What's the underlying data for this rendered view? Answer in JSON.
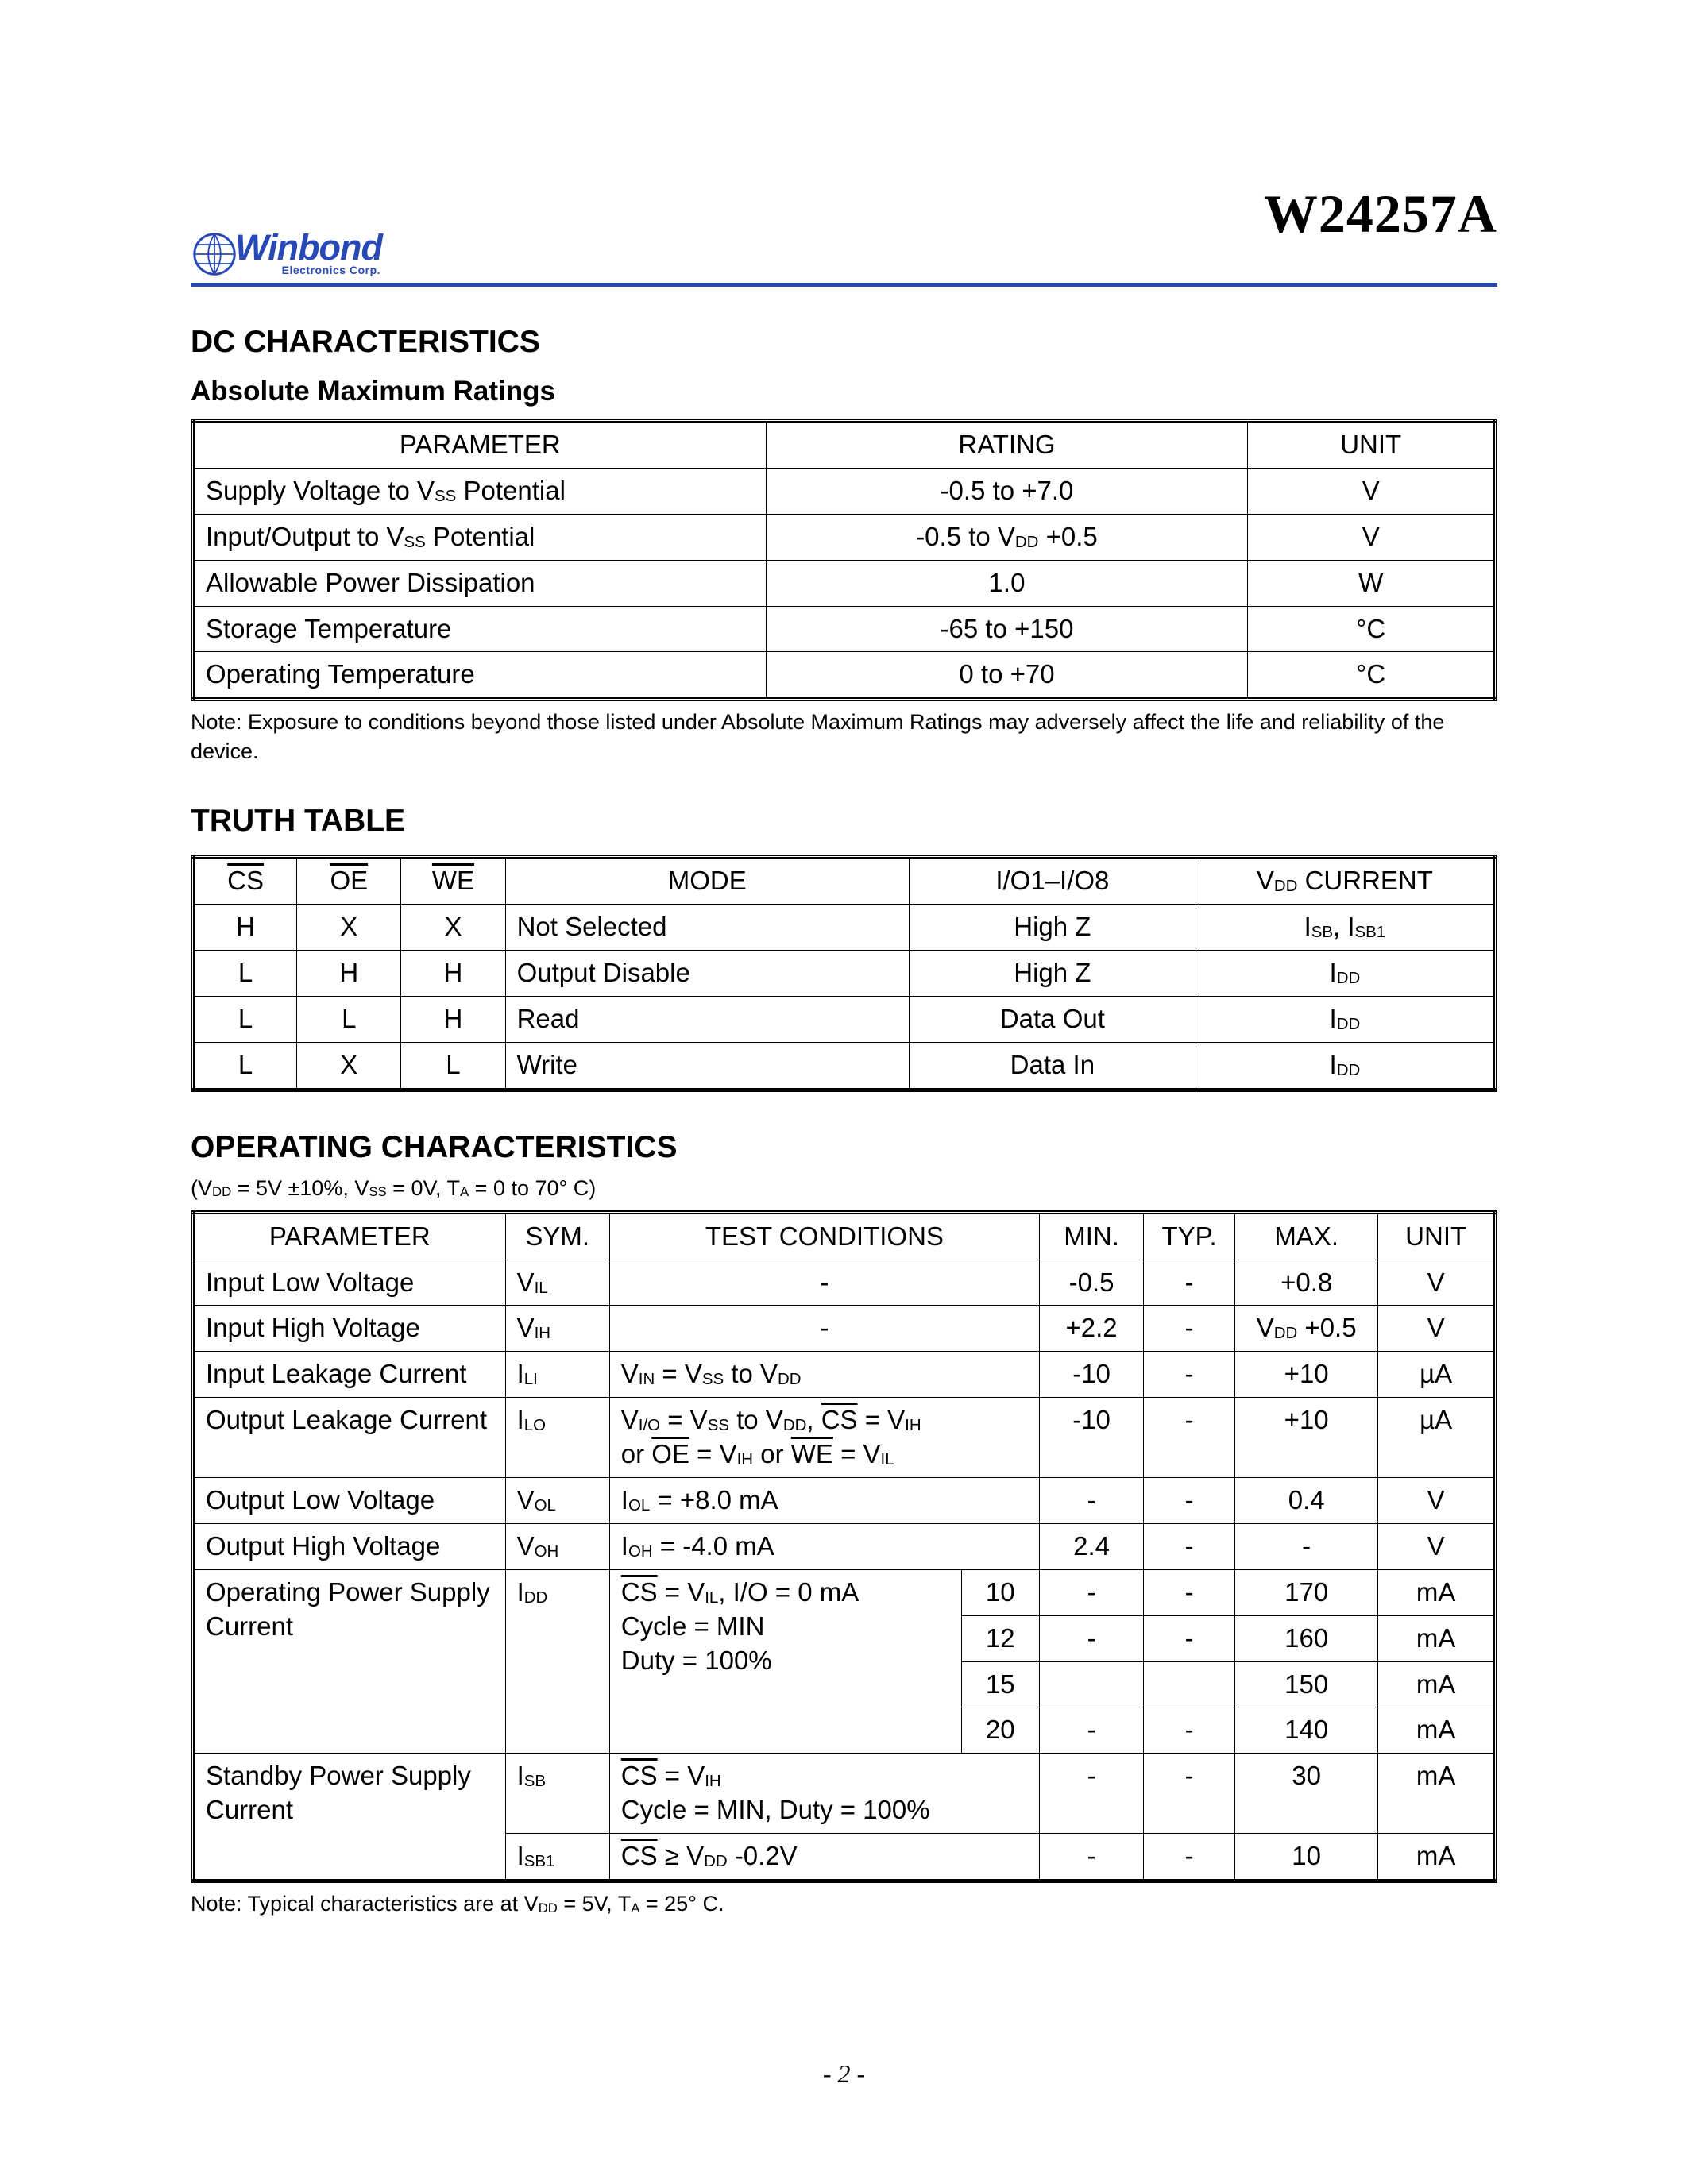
{
  "part_number": "W24257A",
  "logo": {
    "brand": "Winbond",
    "tagline": "Electronics Corp.",
    "color": "#2848b8"
  },
  "page_number": "- 2 -",
  "dc_section": {
    "heading": "DC CHARACTERISTICS",
    "sub_heading": "Absolute Maximum Ratings",
    "headers": [
      "PARAMETER",
      "RATING",
      "UNIT"
    ],
    "rows": [
      {
        "param": "Supply Voltage to V<sub>SS</sub> Potential",
        "rating": "-0.5 to +7.0",
        "unit": "V"
      },
      {
        "param": "Input/Output to V<sub>SS</sub> Potential",
        "rating": "-0.5 to V<sub>DD</sub> +0.5",
        "unit": "V"
      },
      {
        "param": "Allowable Power Dissipation",
        "rating": "1.0",
        "unit": "W"
      },
      {
        "param": "Storage Temperature",
        "rating": "-65 to +150",
        "unit": "°C"
      },
      {
        "param": "Operating Temperature",
        "rating": "0 to +70",
        "unit": "°C"
      }
    ],
    "note": "Note: Exposure to conditions beyond those listed under Absolute Maximum Ratings may adversely affect the life and reliability  of the device."
  },
  "truth_section": {
    "heading": "TRUTH TABLE",
    "headers": [
      "<span class='ov'>CS</span>",
      "<span class='ov'>OE</span>",
      "<span class='ov'>WE</span>",
      "MODE",
      "I/O1–I/O8",
      "V<sub>DD</sub> CURRENT"
    ],
    "rows": [
      [
        "H",
        "X",
        "X",
        "Not Selected",
        "High Z",
        "I<sub>SB</sub>, I<sub>SB1</sub>"
      ],
      [
        "L",
        "H",
        "H",
        "Output Disable",
        "High Z",
        "I<sub>DD</sub>"
      ],
      [
        "L",
        "L",
        "H",
        "Read",
        "Data Out",
        "I<sub>DD</sub>"
      ],
      [
        "L",
        "X",
        "L",
        "Write",
        "Data In",
        "I<sub>DD</sub>"
      ]
    ]
  },
  "op_section": {
    "heading": "OPERATING CHARACTERISTICS",
    "conditions": "(V<sub>DD</sub> = 5V ±10%, V<sub>SS</sub> = 0V, T<sub>A</sub> = 0 to 70° C)",
    "headers": [
      "PARAMETER",
      "SYM.",
      "TEST CONDITIONS",
      "MIN.",
      "TYP.",
      "MAX.",
      "UNIT"
    ],
    "rows": [
      {
        "param": "Input Low Voltage",
        "sym": "V<sub>IL</sub>",
        "tc": "-",
        "min": "-0.5",
        "typ": "-",
        "max": "+0.8",
        "unit": "V"
      },
      {
        "param": "Input High Voltage",
        "sym": "V<sub>IH</sub>",
        "tc": "-",
        "min": "+2.2",
        "typ": "-",
        "max": "V<sub>DD</sub> +0.5",
        "unit": "V"
      },
      {
        "param": "Input Leakage Current",
        "sym": "I<sub>LI</sub>",
        "tc": "V<sub>IN</sub> = V<sub>SS</sub> to V<sub>DD</sub>",
        "min": "-10",
        "typ": "-",
        "max": "+10",
        "unit": "µA"
      },
      {
        "param": "Output Leakage Current",
        "sym": "I<sub>LO</sub>",
        "tc": "V<sub>I/O</sub> = V<sub>SS</sub> to V<sub>DD</sub>, <span class='ov'>CS</span> = V<sub>IH</sub><br>or <span class='ov'>OE</span> = V<sub>IH</sub>  or <span class='ov'>WE</span> = V<sub>IL</sub>",
        "min": "-10",
        "typ": "-",
        "max": "+10",
        "unit": "µA"
      },
      {
        "param": "Output Low Voltage",
        "sym": "V<sub>OL</sub>",
        "tc": "I<sub>OL</sub> = +8.0 mA",
        "min": "-",
        "typ": "-",
        "max": "0.4",
        "unit": "V"
      },
      {
        "param": "Output High Voltage",
        "sym": "V<sub>OH</sub>",
        "tc": "I<sub>OH</sub> = -4.0 mA",
        "min": "2.4",
        "typ": "-",
        "max": "-",
        "unit": "V"
      }
    ],
    "idd": {
      "param": "Operating Power Supply Current",
      "sym": "I<sub>DD</sub>",
      "tc": "<span class='ov'>CS</span> = V<sub>IL</sub>, I/O = 0 mA<br>Cycle = MIN<br>Duty = 100%",
      "variants": [
        {
          "f": "10",
          "min": "-",
          "typ": "-",
          "max": "170",
          "unit": "mA"
        },
        {
          "f": "12",
          "min": "-",
          "typ": "-",
          "max": "160",
          "unit": "mA"
        },
        {
          "f": "15",
          "min": "",
          "typ": "",
          "max": "150",
          "unit": "mA"
        },
        {
          "f": "20",
          "min": "-",
          "typ": "-",
          "max": "140",
          "unit": "mA"
        }
      ]
    },
    "isb": {
      "param": "Standby Power Supply Current",
      "r1": {
        "sym": "I<sub>SB</sub>",
        "tc": "<span class='ov'>CS</span> = V<sub>IH</sub><br>Cycle = MIN, Duty = 100%",
        "min": "-",
        "typ": "-",
        "max": "30",
        "unit": "mA"
      },
      "r2": {
        "sym": "I<sub>SB1</sub>",
        "tc": "<span class='ov'>CS</span> ≥ V<sub>DD</sub> -0.2V",
        "min": "-",
        "typ": "-",
        "max": "10",
        "unit": "mA"
      }
    },
    "note": "Note: Typical characteristics are at V<sub>DD</sub> = 5V, T<sub>A</sub> = 25° C."
  },
  "col_widths": {
    "dc": [
      "44%",
      "37%",
      "19%"
    ],
    "truth": [
      "8%",
      "8%",
      "8%",
      "31%",
      "22%",
      "23%"
    ],
    "op": [
      "24%",
      "8%",
      "27%",
      "6%",
      "8%",
      "7%",
      "11%",
      "9%"
    ]
  }
}
